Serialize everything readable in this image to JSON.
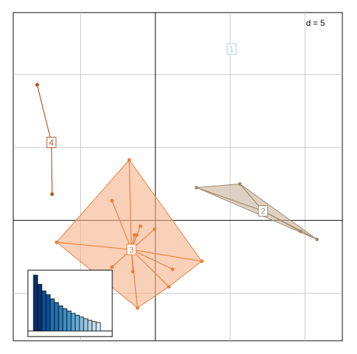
{
  "chart_data": {
    "type": "scatter",
    "annotation": "d = 5",
    "xlim": [
      -1.9,
      2.5
    ],
    "ylim": [
      -1.65,
      2.85
    ],
    "grid_step": 1,
    "groups": [
      {
        "label": "1",
        "color": "#a6cee3",
        "fill": "#deebf7",
        "center": [
          1.02,
          2.35
        ],
        "points": []
      },
      {
        "label": "2",
        "color": "#a08a6e",
        "fill": "#c8b39a",
        "center": [
          1.44,
          0.13
        ],
        "points": [
          [
            0.55,
            0.45
          ],
          [
            1.13,
            0.5
          ],
          [
            1.94,
            -0.15
          ],
          [
            2.16,
            -0.26
          ]
        ]
      },
      {
        "label": "3",
        "color": "#ee7f3a",
        "fill": "#f5b088",
        "center": [
          -0.32,
          -0.4
        ],
        "points": [
          [
            -0.35,
            0.83
          ],
          [
            -0.58,
            0.27
          ],
          [
            -0.2,
            -0.08
          ],
          [
            -0.28,
            -0.2
          ],
          [
            -0.25,
            -0.2
          ],
          [
            -0.01,
            -0.12
          ],
          [
            -1.32,
            -0.3
          ],
          [
            0.62,
            -0.56
          ],
          [
            -0.58,
            -0.64
          ],
          [
            0.23,
            -0.67
          ],
          [
            -0.3,
            -0.7
          ],
          [
            0.18,
            -0.91
          ],
          [
            -0.24,
            -1.2
          ]
        ]
      },
      {
        "label": "4",
        "color": "#b9501f",
        "fill": "#d97b4d",
        "center": [
          -1.39,
          1.07
        ],
        "points": [
          [
            -1.58,
            1.86
          ],
          [
            -1.38,
            0.36
          ]
        ]
      }
    ],
    "eigen_inset": {
      "values": [
        12,
        10,
        8.6,
        7.8,
        6.9,
        6.1,
        5.4,
        4.8,
        4.3,
        3.8,
        3.4,
        3.0,
        2.6,
        2.3,
        2.0,
        1.8
      ],
      "colors": [
        "#08306b",
        "#08306b",
        "#08519c",
        "#08519c",
        "#2171b5",
        "#2171b5",
        "#2f7fbe",
        "#3d8dc8",
        "#4292c6",
        "#5aa2cf",
        "#6baed6",
        "#85bcdb",
        "#9ecae1",
        "#b3d4e8",
        "#c6dbef",
        "#dbe9f6"
      ]
    }
  }
}
